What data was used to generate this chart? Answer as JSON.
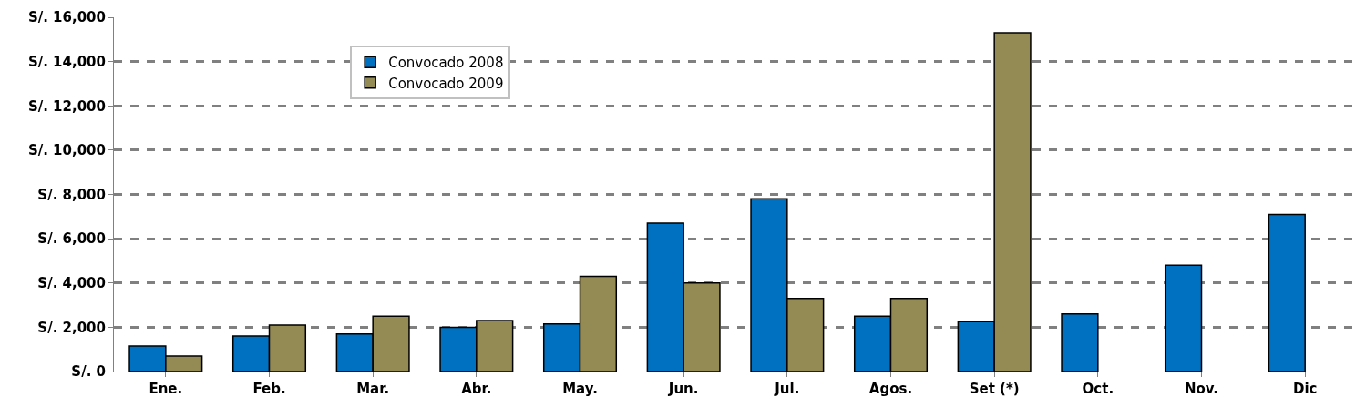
{
  "chart_data": {
    "type": "bar",
    "categories": [
      "Ene.",
      "Feb.",
      "Mar.",
      "Abr.",
      "May.",
      "Jun.",
      "Jul.",
      "Agos.",
      "Set (*)",
      "Oct.",
      "Nov.",
      "Dic"
    ],
    "series": [
      {
        "name": "Convocado 2008",
        "color": "#0070c0",
        "values": [
          1150,
          1600,
          1700,
          2000,
          2150,
          6700,
          7800,
          2500,
          2250,
          2600,
          4800,
          7100
        ]
      },
      {
        "name": "Convocado 2009",
        "color": "#948a54",
        "values": [
          700,
          2100,
          2500,
          2300,
          4300,
          4000,
          3300,
          3300,
          15300,
          null,
          null,
          null
        ]
      }
    ],
    "ylim": [
      0,
      16000
    ],
    "yticks": [
      {
        "value": 0,
        "label": "S/. 0"
      },
      {
        "value": 2000,
        "label": "S/. 2,000"
      },
      {
        "value": 4000,
        "label": "S/. 4,000"
      },
      {
        "value": 6000,
        "label": "S/. 6,000"
      },
      {
        "value": 8000,
        "label": "S/. 8,000"
      },
      {
        "value": 10000,
        "label": "S/. 10,000"
      },
      {
        "value": 12000,
        "label": "S/. 12,000"
      },
      {
        "value": 14000,
        "label": "S/. 14,000"
      },
      {
        "value": 16000,
        "label": "S/. 16,000"
      }
    ],
    "grid": "y",
    "legend": "top left"
  }
}
